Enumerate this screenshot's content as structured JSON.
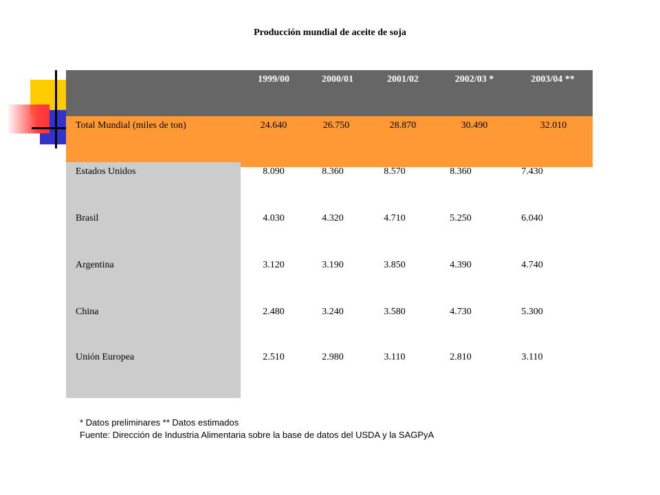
{
  "title": "Producción mundial de aceite de soja",
  "chart_data": {
    "type": "table",
    "title": "Producción mundial de aceite de soja",
    "columns": [
      "1999/00",
      "2000/01",
      "2001/02",
      "2002/03 *",
      "2003/04 **"
    ],
    "rows": [
      {
        "label": "Total Mundial (miles de ton)",
        "values": [
          "24.640",
          "26.750",
          "28.870",
          "30.490",
          "32.010"
        ]
      },
      {
        "label": "Estados Unidos",
        "values": [
          "8.090",
          "8.360",
          "8.570",
          "8.360",
          "7.430"
        ]
      },
      {
        "label": "Brasil",
        "values": [
          "4.030",
          "4.320",
          "4.710",
          "5.250",
          "6.040"
        ]
      },
      {
        "label": "Argentina",
        "values": [
          "3.120",
          "3.190",
          "3.850",
          "4.390",
          "4.740"
        ]
      },
      {
        "label": "China",
        "values": [
          "2.480",
          "3.240",
          "3.580",
          "4.730",
          "5.300"
        ]
      },
      {
        "label": "Unión Europea",
        "values": [
          "2.510",
          "2.980",
          "3.110",
          "2.810",
          "3.110"
        ]
      }
    ]
  },
  "footnote_1": "* Datos preliminares   ** Datos estimados",
  "footnote_2": "Fuente: Dirección de Industria Alimentaria sobre la base de datos del USDA y la SAGPyA",
  "colors": {
    "header_band": "#666666",
    "total_band": "#ff9933",
    "label_band": "#cccccc"
  }
}
